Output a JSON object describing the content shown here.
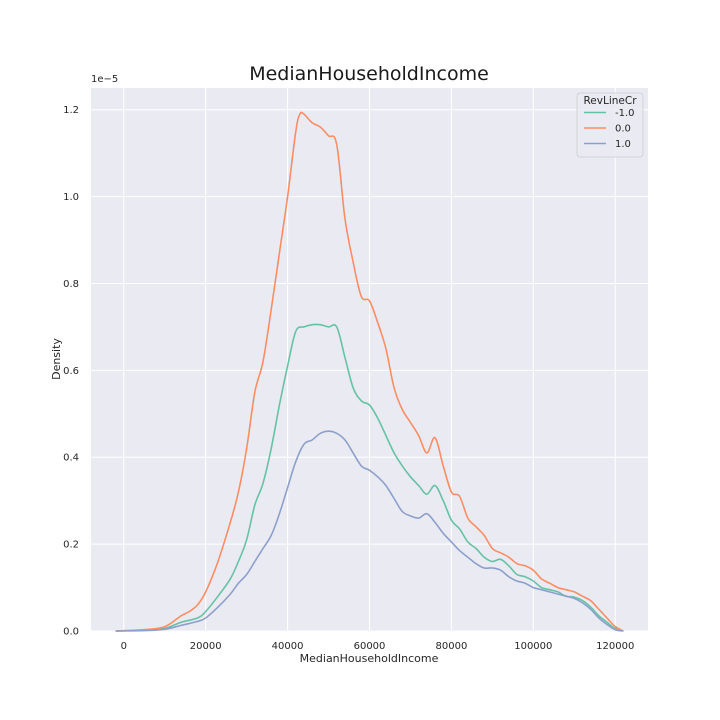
{
  "chart_data": {
    "type": "line",
    "title": "MedianHouseholdIncome",
    "xlabel": "MedianHouseholdIncome",
    "ylabel": "Density",
    "y_scale_label": "1e−5",
    "xlim": [
      -8000,
      128000
    ],
    "ylim": [
      0,
      1.25
    ],
    "xticks": [
      0,
      20000,
      40000,
      60000,
      80000,
      100000,
      120000
    ],
    "yticks": [
      0.0,
      0.2,
      0.4,
      0.6,
      0.8,
      1.0,
      1.2
    ],
    "xtick_labels": [
      "0",
      "20000",
      "40000",
      "60000",
      "80000",
      "100000",
      "120000"
    ],
    "ytick_labels": [
      "0.0",
      "0.2",
      "0.4",
      "0.6",
      "0.8",
      "1.0",
      "1.2"
    ],
    "grid": true,
    "legend": {
      "title": "RevLineCr",
      "position": "top-right"
    },
    "series": [
      {
        "name": "-1.0",
        "color": "#66c2a5",
        "x": [
          -2000,
          5000,
          10000,
          14000,
          18000,
          20000,
          23000,
          26000,
          28000,
          30000,
          32000,
          34000,
          36000,
          38000,
          40000,
          42000,
          44000,
          46000,
          48000,
          50000,
          52000,
          54000,
          56000,
          58000,
          60000,
          62000,
          64000,
          66000,
          68000,
          70000,
          72000,
          74000,
          76000,
          78000,
          80000,
          82000,
          84000,
          86000,
          88000,
          90000,
          92000,
          94000,
          96000,
          98000,
          100000,
          102000,
          104000,
          106000,
          108000,
          110000,
          112000,
          114000,
          116000,
          118000,
          120000,
          122000
        ],
        "values": [
          0.0,
          0.002,
          0.006,
          0.02,
          0.03,
          0.045,
          0.08,
          0.12,
          0.16,
          0.21,
          0.29,
          0.34,
          0.42,
          0.52,
          0.61,
          0.69,
          0.7,
          0.705,
          0.705,
          0.7,
          0.7,
          0.63,
          0.56,
          0.53,
          0.52,
          0.49,
          0.45,
          0.41,
          0.38,
          0.355,
          0.335,
          0.315,
          0.335,
          0.3,
          0.255,
          0.235,
          0.205,
          0.19,
          0.17,
          0.16,
          0.165,
          0.15,
          0.13,
          0.125,
          0.115,
          0.1,
          0.095,
          0.09,
          0.08,
          0.078,
          0.07,
          0.055,
          0.035,
          0.02,
          0.005,
          0.0
        ]
      },
      {
        "name": "0.0",
        "color": "#fc8d62",
        "x": [
          -2000,
          5000,
          10000,
          14000,
          16000,
          18000,
          20000,
          23000,
          26000,
          28000,
          30000,
          32000,
          34000,
          36000,
          38000,
          40000,
          42000,
          43000,
          44000,
          46000,
          48000,
          50000,
          52000,
          54000,
          56000,
          58000,
          60000,
          62000,
          64000,
          66000,
          68000,
          70000,
          72000,
          74000,
          76000,
          78000,
          80000,
          82000,
          84000,
          86000,
          88000,
          90000,
          92000,
          94000,
          96000,
          98000,
          100000,
          102000,
          104000,
          106000,
          108000,
          110000,
          112000,
          114000,
          116000,
          118000,
          120000,
          122000
        ],
        "values": [
          0.0,
          0.003,
          0.01,
          0.035,
          0.045,
          0.06,
          0.09,
          0.16,
          0.25,
          0.32,
          0.42,
          0.55,
          0.62,
          0.74,
          0.87,
          1.0,
          1.15,
          1.19,
          1.19,
          1.17,
          1.16,
          1.14,
          1.12,
          0.95,
          0.85,
          0.77,
          0.76,
          0.71,
          0.65,
          0.56,
          0.51,
          0.48,
          0.45,
          0.41,
          0.445,
          0.38,
          0.32,
          0.31,
          0.26,
          0.24,
          0.22,
          0.19,
          0.18,
          0.17,
          0.155,
          0.15,
          0.14,
          0.12,
          0.11,
          0.1,
          0.095,
          0.09,
          0.08,
          0.07,
          0.05,
          0.03,
          0.01,
          0.0
        ]
      },
      {
        "name": "1.0",
        "color": "#8da0cb",
        "x": [
          -2000,
          5000,
          10000,
          14000,
          18000,
          20000,
          23000,
          26000,
          28000,
          30000,
          32000,
          34000,
          36000,
          38000,
          40000,
          42000,
          44000,
          46000,
          48000,
          50000,
          52000,
          54000,
          56000,
          58000,
          60000,
          62000,
          64000,
          66000,
          68000,
          70000,
          72000,
          74000,
          76000,
          78000,
          80000,
          82000,
          84000,
          86000,
          88000,
          90000,
          92000,
          94000,
          96000,
          98000,
          100000,
          102000,
          104000,
          106000,
          108000,
          110000,
          112000,
          114000,
          116000,
          118000,
          120000,
          122000
        ],
        "values": [
          0.0,
          0.001,
          0.004,
          0.013,
          0.022,
          0.03,
          0.055,
          0.085,
          0.11,
          0.13,
          0.16,
          0.19,
          0.22,
          0.27,
          0.33,
          0.39,
          0.43,
          0.44,
          0.455,
          0.46,
          0.455,
          0.44,
          0.41,
          0.38,
          0.37,
          0.355,
          0.335,
          0.305,
          0.275,
          0.265,
          0.26,
          0.27,
          0.25,
          0.225,
          0.205,
          0.185,
          0.17,
          0.155,
          0.145,
          0.145,
          0.14,
          0.125,
          0.115,
          0.11,
          0.1,
          0.095,
          0.09,
          0.085,
          0.08,
          0.075,
          0.065,
          0.05,
          0.03,
          0.015,
          0.003,
          0.0
        ]
      }
    ]
  }
}
